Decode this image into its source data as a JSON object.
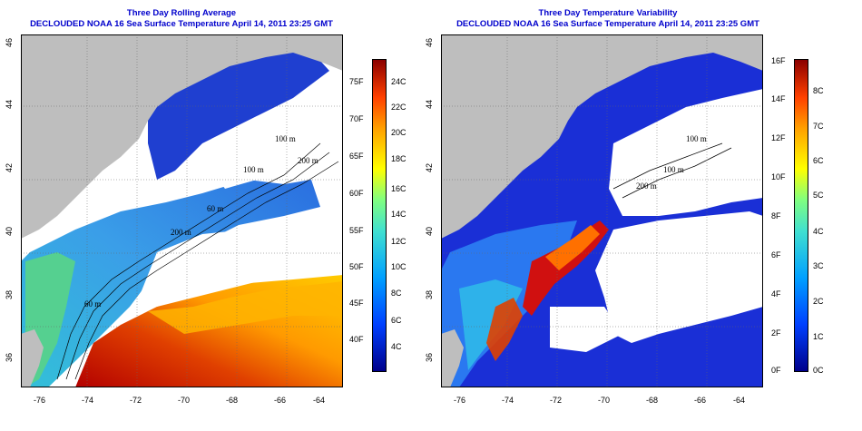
{
  "left_panel": {
    "title_line1": "Three Day Rolling Average",
    "title_line2": "DECLOUDED NOAA 16 Sea Surface Temperature April 14, 2011 23:25 GMT",
    "lon_ticks": [
      "-76",
      "-74",
      "-72",
      "-70",
      "-68",
      "-66",
      "-64"
    ],
    "lat_ticks": [
      "36",
      "38",
      "40",
      "42",
      "44",
      "46"
    ],
    "colorbar_f": [
      "75F",
      "70F",
      "65F",
      "60F",
      "55F",
      "50F",
      "45F",
      "40F"
    ],
    "colorbar_c": [
      "24C",
      "22C",
      "20C",
      "18C",
      "16C",
      "14C",
      "12C",
      "10C",
      "8C",
      "6C",
      "4C"
    ],
    "contour_labels": [
      "100 m",
      "100 m",
      "200 m",
      "200 m",
      "60 m",
      "60 m"
    ]
  },
  "right_panel": {
    "title_line1": "Three Day Temperature Variability",
    "title_line2": "DECLOUDED NOAA 16 Sea Surface Temperature April 14, 2011 23:25 GMT",
    "lon_ticks": [
      "-76",
      "-74",
      "-72",
      "-70",
      "-68",
      "-66",
      "-64"
    ],
    "lat_ticks": [
      "36",
      "38",
      "40",
      "42",
      "44",
      "46"
    ],
    "colorbar_f": [
      "16F",
      "14F",
      "12F",
      "10F",
      "8F",
      "6F",
      "4F",
      "2F",
      "0F"
    ],
    "colorbar_c": [
      "8C",
      "7C",
      "6C",
      "5C",
      "4C",
      "3C",
      "2C",
      "1C",
      "0C"
    ],
    "contour_labels": [
      "100 m",
      "100 m",
      "200 m"
    ]
  },
  "colors": {
    "title": "#0000cc",
    "land": "#bebebe",
    "cloud": "#ffffff"
  }
}
